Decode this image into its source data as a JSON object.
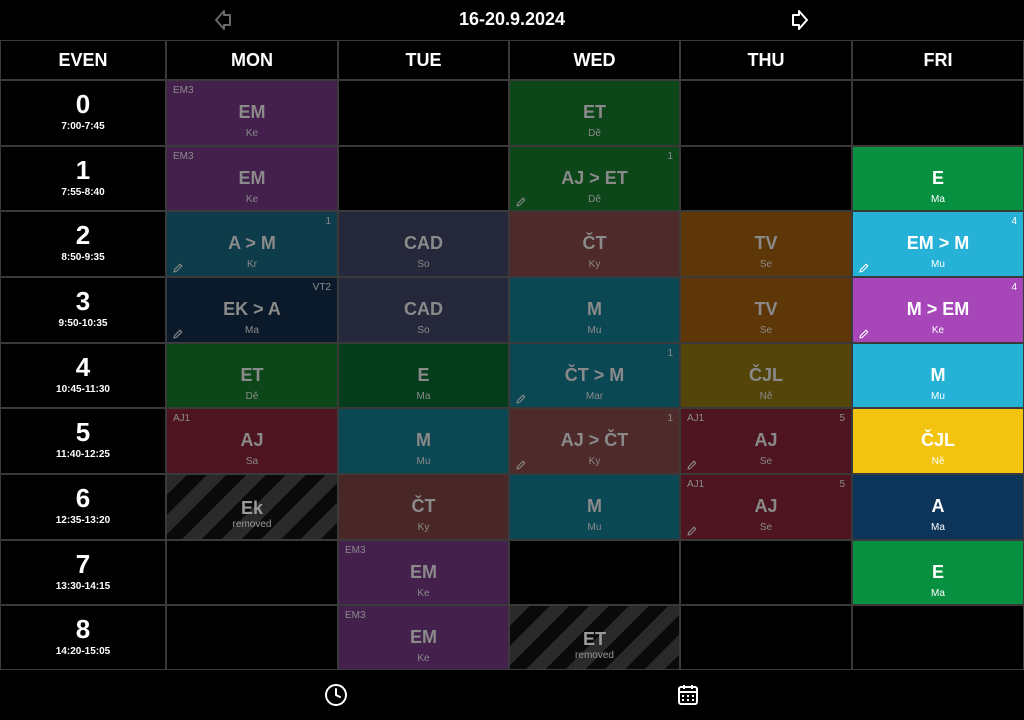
{
  "header": {
    "date_range": "16-20.9.2024"
  },
  "grid": {
    "week_label": "EVEN",
    "days": [
      "MON",
      "TUE",
      "WED",
      "THU",
      "FRI"
    ],
    "periods": [
      {
        "num": "0",
        "time": "7:00-7:45"
      },
      {
        "num": "1",
        "time": "7:55-8:40"
      },
      {
        "num": "2",
        "time": "8:50-9:35"
      },
      {
        "num": "3",
        "time": "9:50-10:35"
      },
      {
        "num": "4",
        "time": "10:45-11:30"
      },
      {
        "num": "5",
        "time": "11:40-12:25"
      },
      {
        "num": "6",
        "time": "12:35-13:20"
      },
      {
        "num": "7",
        "time": "13:30-14:15"
      },
      {
        "num": "8",
        "time": "14:20-15:05"
      }
    ],
    "lessons": [
      {
        "day": 0,
        "period": 0,
        "subject": "EM",
        "teacher": "Ke",
        "group": "EM3",
        "color": "#44204d",
        "dim": true
      },
      {
        "day": 0,
        "period": 1,
        "subject": "EM",
        "teacher": "Ke",
        "group": "EM3",
        "color": "#44204d",
        "dim": true
      },
      {
        "day": 0,
        "period": 2,
        "subject": "A > M",
        "teacher": "Kr",
        "count": "1",
        "color": "#0f3c4a",
        "dim": true,
        "edited": true
      },
      {
        "day": 0,
        "period": 3,
        "subject": "EK > A",
        "teacher": "Ma",
        "count": "VT2",
        "color": "#0b1a2a",
        "dim": true,
        "edited": true
      },
      {
        "day": 0,
        "period": 4,
        "subject": "ET",
        "teacher": "Dě",
        "color": "#0c4619",
        "dim": true
      },
      {
        "day": 0,
        "period": 5,
        "subject": "AJ",
        "teacher": "Sa",
        "group": "AJ1",
        "color": "#4e1520",
        "dim": true
      },
      {
        "day": 0,
        "period": 6,
        "subject": "Ek",
        "status": "removed",
        "removed": true
      },
      {
        "day": 1,
        "period": 2,
        "subject": "CAD",
        "teacher": "So",
        "color": "#25283a",
        "dim": true
      },
      {
        "day": 1,
        "period": 3,
        "subject": "CAD",
        "teacher": "So",
        "color": "#25283a",
        "dim": true
      },
      {
        "day": 1,
        "period": 4,
        "subject": "E",
        "teacher": "Ma",
        "color": "#033d1c",
        "dim": true
      },
      {
        "day": 1,
        "period": 5,
        "subject": "M",
        "teacher": "Mu",
        "color": "#0c4854",
        "dim": true
      },
      {
        "day": 1,
        "period": 6,
        "subject": "ČT",
        "teacher": "Ky",
        "color": "#4a2727",
        "dim": true
      },
      {
        "day": 1,
        "period": 7,
        "subject": "EM",
        "teacher": "Ke",
        "group": "EM3",
        "color": "#44204d",
        "dim": true
      },
      {
        "day": 1,
        "period": 8,
        "subject": "EM",
        "teacher": "Ke",
        "group": "EM3",
        "color": "#44204d",
        "dim": true
      },
      {
        "day": 2,
        "period": 0,
        "subject": "ET",
        "teacher": "Dě",
        "color": "#0c4619",
        "dim": true
      },
      {
        "day": 2,
        "period": 1,
        "subject": "AJ > ET",
        "teacher": "Dě",
        "count": "1",
        "color": "#0c4619",
        "dim": true,
        "edited": true
      },
      {
        "day": 2,
        "period": 2,
        "subject": "ČT",
        "teacher": "Ky",
        "color": "#4e2a2a",
        "dim": true
      },
      {
        "day": 2,
        "period": 3,
        "subject": "M",
        "teacher": "Mu",
        "color": "#0c4854",
        "dim": true
      },
      {
        "day": 2,
        "period": 4,
        "subject": "ČT > M",
        "teacher": "Mar",
        "count": "1",
        "color": "#0c4854",
        "dim": true,
        "edited": true
      },
      {
        "day": 2,
        "period": 5,
        "subject": "AJ > ČT",
        "teacher": "Ky",
        "count": "1",
        "color": "#4e2a2a",
        "dim": true,
        "edited": true
      },
      {
        "day": 2,
        "period": 6,
        "subject": "M",
        "teacher": "Mu",
        "color": "#0c4854",
        "dim": true
      },
      {
        "day": 2,
        "period": 8,
        "subject": "ET",
        "status": "removed",
        "removed": true
      },
      {
        "day": 3,
        "period": 2,
        "subject": "TV",
        "teacher": "Se",
        "color": "#5e3708",
        "dim": true
      },
      {
        "day": 3,
        "period": 3,
        "subject": "TV",
        "teacher": "Se",
        "color": "#5e3708",
        "dim": true
      },
      {
        "day": 3,
        "period": 4,
        "subject": "ČJL",
        "teacher": "Ně",
        "color": "#54450a",
        "dim": true
      },
      {
        "day": 3,
        "period": 5,
        "subject": "AJ",
        "teacher": "Se",
        "group": "AJ1",
        "count": "5",
        "color": "#4e1520",
        "dim": true,
        "edited": true
      },
      {
        "day": 3,
        "period": 6,
        "subject": "AJ",
        "teacher": "Se",
        "group": "AJ1",
        "count": "5",
        "color": "#4e1520",
        "dim": true,
        "edited": true
      },
      {
        "day": 4,
        "period": 1,
        "subject": "E",
        "teacher": "Ma",
        "color": "#07903f",
        "dim": false
      },
      {
        "day": 4,
        "period": 2,
        "subject": "EM > M",
        "teacher": "Mu",
        "count": "4",
        "color": "#26b1d6",
        "dim": false,
        "edited": true
      },
      {
        "day": 4,
        "period": 3,
        "subject": "M > EM",
        "teacher": "Ke",
        "count": "4",
        "color": "#a646b9",
        "dim": false,
        "edited": true
      },
      {
        "day": 4,
        "period": 4,
        "subject": "M",
        "teacher": "Mu",
        "color": "#26b1d6",
        "dim": false
      },
      {
        "day": 4,
        "period": 5,
        "subject": "ČJL",
        "teacher": "Ně",
        "color": "#f2c40f",
        "dim": false
      },
      {
        "day": 4,
        "period": 6,
        "subject": "A",
        "teacher": "Ma",
        "color": "#0c3559",
        "dim": false
      },
      {
        "day": 4,
        "period": 7,
        "subject": "E",
        "teacher": "Ma",
        "color": "#07903f",
        "dim": false
      }
    ]
  },
  "footer": {
    "clock_icon": "clock-icon",
    "calendar_icon": "calendar-icon"
  },
  "colors": {
    "background": "#000000",
    "grid_line": "#3a3a3a",
    "dim_text": "#8a8a8a"
  }
}
